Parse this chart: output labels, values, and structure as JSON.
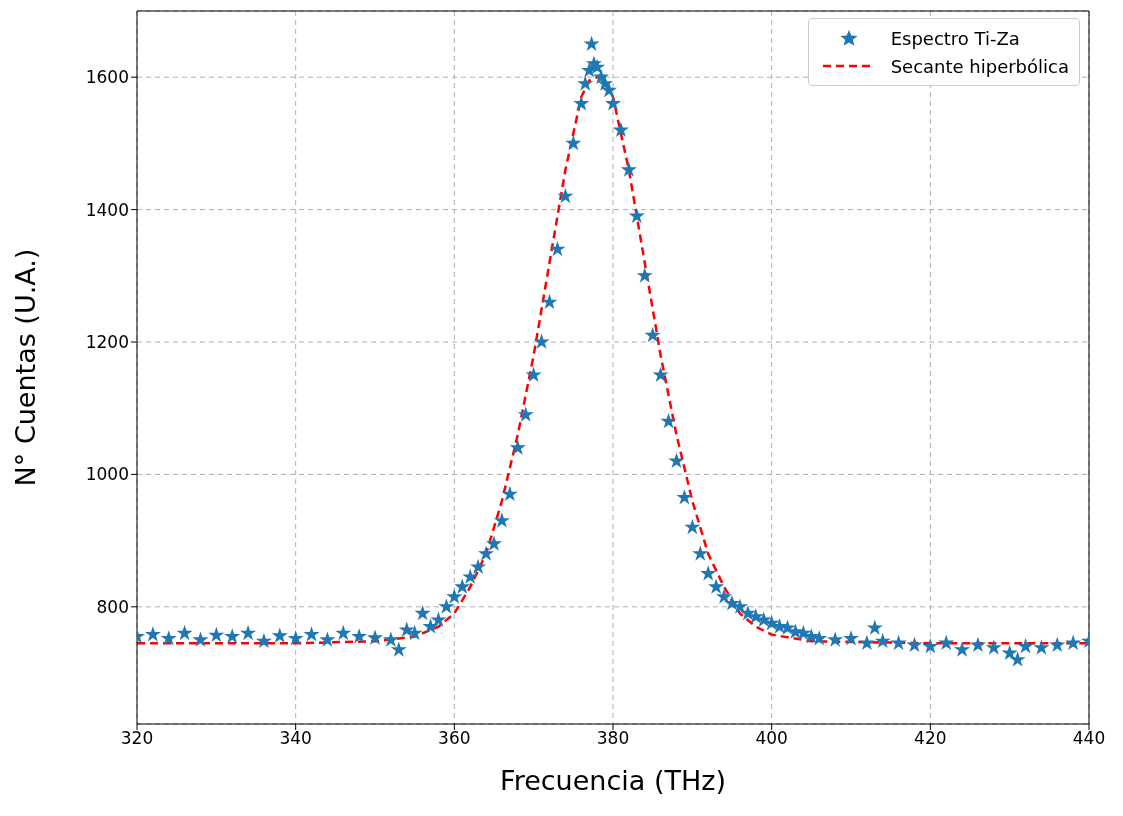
{
  "chart_data": {
    "type": "scatter",
    "xlabel": "Frecuencia (THz)",
    "ylabel": "N° Cuentas (U.A.)",
    "xlim": [
      320,
      440
    ],
    "xticks": [
      320,
      340,
      360,
      380,
      400,
      420,
      440
    ],
    "ylim": [
      623,
      1700
    ],
    "yticks": [
      800,
      1000,
      1200,
      1400,
      1600
    ],
    "grid": true,
    "legend": "top right",
    "series": [
      {
        "name": "Espectro Ti-Za",
        "marker": "star",
        "color": "#1f77b4",
        "x": [
          320,
          322,
          324,
          326,
          328,
          330,
          332,
          334,
          336,
          338,
          340,
          342,
          344,
          346,
          348,
          350,
          352,
          353,
          354,
          355,
          356,
          357,
          358,
          359,
          360,
          361,
          362,
          363,
          364,
          365,
          366,
          367,
          368,
          369,
          370,
          371,
          372,
          373,
          374,
          375,
          376,
          376.5,
          377,
          377.3,
          377.6,
          378,
          378.5,
          379,
          379.5,
          380,
          381,
          382,
          383,
          384,
          385,
          386,
          387,
          388,
          389,
          390,
          391,
          392,
          393,
          394,
          395,
          396,
          397,
          398,
          399,
          400,
          401,
          402,
          403,
          404,
          405,
          406,
          408,
          410,
          412,
          413,
          414,
          416,
          418,
          420,
          422,
          424,
          426,
          428,
          430,
          431,
          432,
          434,
          436,
          438,
          440
        ],
        "values": [
          755,
          758,
          752,
          760,
          750,
          757,
          755,
          760,
          748,
          756,
          752,
          758,
          750,
          760,
          755,
          753,
          750,
          735,
          765,
          760,
          790,
          770,
          780,
          800,
          815,
          830,
          845,
          860,
          880,
          895,
          930,
          970,
          1040,
          1090,
          1150,
          1200,
          1260,
          1340,
          1420,
          1500,
          1560,
          1590,
          1610,
          1650,
          1620,
          1615,
          1600,
          1590,
          1580,
          1560,
          1520,
          1460,
          1390,
          1300,
          1210,
          1150,
          1080,
          1020,
          965,
          920,
          880,
          850,
          830,
          815,
          805,
          800,
          790,
          785,
          780,
          775,
          770,
          768,
          762,
          760,
          755,
          752,
          750,
          752,
          745,
          768,
          748,
          745,
          742,
          740,
          745,
          735,
          742,
          738,
          730,
          720,
          740,
          738,
          742,
          745,
          748
        ]
      },
      {
        "name": "Secante hiperbólica",
        "type": "line",
        "marker": "none",
        "line_style": "dashed",
        "color": "#ff0000",
        "x": [
          320,
          340,
          350,
          355,
          358,
          360,
          362,
          364,
          366,
          368,
          370,
          372,
          374,
          376,
          377,
          378,
          379,
          380,
          382,
          384,
          386,
          388,
          390,
          392,
          394,
          396,
          398,
          400,
          405,
          420,
          440
        ],
        "values": [
          745,
          745,
          748,
          755,
          770,
          790,
          830,
          880,
          960,
          1060,
          1180,
          1320,
          1460,
          1570,
          1595,
          1600,
          1595,
          1570,
          1460,
          1320,
          1180,
          1060,
          960,
          880,
          830,
          790,
          770,
          758,
          748,
          745,
          745
        ]
      }
    ]
  }
}
